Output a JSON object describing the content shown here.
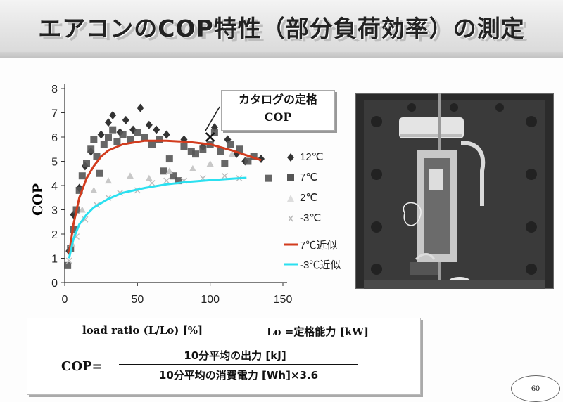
{
  "slide": {
    "title": "エアコンのCOP特性（部分負荷効率）の測定",
    "page_number": "60"
  },
  "callout": {
    "line1": "カタログの定格",
    "line2": "COP"
  },
  "legend": {
    "items": [
      {
        "label": "12℃",
        "symbol": "diamond",
        "color": "#333333"
      },
      {
        "label": "7℃",
        "symbol": "square",
        "color": "#555555"
      },
      {
        "label": "2℃",
        "symbol": "triangle",
        "color": "#c8c8c8"
      },
      {
        "label": "-3℃",
        "symbol": "cross",
        "color": "#bbbbbb"
      },
      {
        "label": "7℃近似",
        "symbol": "line",
        "color": "#d23c1e"
      },
      {
        "label": "-3℃近似",
        "symbol": "line",
        "color": "#2be0f0"
      }
    ]
  },
  "formula": {
    "load_ratio": "load ratio (L/Lo) [%]",
    "lo_def": "Lo =定格能力 [kW]",
    "lhs": "COP=",
    "numerator": "10分平均の出力 [kJ]",
    "denominator": "10分平均の消費電力 [Wh]×3.6"
  },
  "photo": {
    "icon": "air-conditioner-test-room-photo"
  },
  "chart_data": {
    "type": "scatter",
    "title": "",
    "xlabel": "",
    "ylabel": "COP",
    "xlim": [
      0,
      150
    ],
    "ylim": [
      0,
      8
    ],
    "x_ticks": [
      "0",
      "50",
      "100",
      "150"
    ],
    "y_ticks": [
      "0",
      "1",
      "2",
      "3",
      "4",
      "5",
      "6",
      "7",
      "8"
    ],
    "grid": false,
    "legend_position": "right",
    "catalog_rated_cop": {
      "x": 100,
      "y": 6.0
    },
    "series": [
      {
        "name": "12℃",
        "kind": "scatter",
        "marker": "diamond",
        "color": "#333333",
        "points": [
          [
            3,
            1.3
          ],
          [
            6,
            2.8
          ],
          [
            10,
            3.9
          ],
          [
            14,
            4.8
          ],
          [
            18,
            5.4
          ],
          [
            25,
            6.1
          ],
          [
            30,
            6.6
          ],
          [
            33,
            6.9
          ],
          [
            38,
            6.2
          ],
          [
            42,
            6.7
          ],
          [
            47,
            6.3
          ],
          [
            52,
            7.2
          ],
          [
            58,
            6.5
          ],
          [
            63,
            6.3
          ],
          [
            70,
            6.1
          ],
          [
            82,
            5.9
          ],
          [
            95,
            5.6
          ],
          [
            103,
            6.4
          ],
          [
            112,
            5.9
          ],
          [
            118,
            5.3
          ],
          [
            124,
            5.0
          ],
          [
            135,
            5.1
          ]
        ]
      },
      {
        "name": "7℃",
        "kind": "scatter",
        "marker": "square",
        "color": "#555555",
        "points": [
          [
            2,
            0.7
          ],
          [
            4,
            1.4
          ],
          [
            6,
            2.2
          ],
          [
            8,
            3.0
          ],
          [
            10,
            3.8
          ],
          [
            12,
            4.4
          ],
          [
            15,
            4.9
          ],
          [
            18,
            5.5
          ],
          [
            20,
            5.9
          ],
          [
            22,
            5.2
          ],
          [
            24,
            4.5
          ],
          [
            27,
            5.7
          ],
          [
            30,
            6.0
          ],
          [
            33,
            6.3
          ],
          [
            36,
            5.8
          ],
          [
            40,
            6.1
          ],
          [
            45,
            5.9
          ],
          [
            50,
            6.2
          ],
          [
            55,
            6.0
          ],
          [
            60,
            5.7
          ],
          [
            65,
            5.9
          ],
          [
            68,
            4.6
          ],
          [
            72,
            5.1
          ],
          [
            75,
            4.4
          ],
          [
            78,
            4.2
          ],
          [
            82,
            5.6
          ],
          [
            87,
            5.4
          ],
          [
            90,
            5.3
          ],
          [
            95,
            5.5
          ],
          [
            100,
            5.7
          ],
          [
            103,
            6.2
          ],
          [
            107,
            5.4
          ],
          [
            110,
            4.9
          ],
          [
            114,
            5.7
          ],
          [
            120,
            5.5
          ],
          [
            126,
            5.0
          ],
          [
            130,
            5.2
          ],
          [
            140,
            4.3
          ]
        ]
      },
      {
        "name": "2℃",
        "kind": "scatter",
        "marker": "triangle",
        "color": "#c8c8c8",
        "points": [
          [
            5,
            1.6
          ],
          [
            12,
            3.0
          ],
          [
            20,
            3.8
          ],
          [
            30,
            4.2
          ],
          [
            45,
            4.4
          ],
          [
            58,
            4.3
          ],
          [
            72,
            4.6
          ],
          [
            88,
            4.7
          ],
          [
            100,
            4.9
          ],
          [
            115,
            5.3
          ]
        ]
      },
      {
        "name": "-3℃",
        "kind": "scatter",
        "marker": "cross",
        "color": "#bbbbbb",
        "points": [
          [
            3,
            0.9
          ],
          [
            8,
            1.9
          ],
          [
            14,
            2.6
          ],
          [
            22,
            3.2
          ],
          [
            30,
            3.5
          ],
          [
            38,
            3.7
          ],
          [
            50,
            3.8
          ],
          [
            60,
            4.1
          ],
          [
            70,
            4.2
          ],
          [
            82,
            4.2
          ],
          [
            95,
            4.3
          ],
          [
            110,
            4.4
          ],
          [
            120,
            4.3
          ]
        ]
      },
      {
        "name": "7℃近似",
        "kind": "line",
        "color": "#d23c1e",
        "points": [
          [
            3,
            1.2
          ],
          [
            6,
            2.4
          ],
          [
            10,
            3.5
          ],
          [
            15,
            4.3
          ],
          [
            20,
            4.8
          ],
          [
            25,
            5.2
          ],
          [
            30,
            5.45
          ],
          [
            40,
            5.7
          ],
          [
            55,
            5.85
          ],
          [
            70,
            5.85
          ],
          [
            85,
            5.8
          ],
          [
            100,
            5.7
          ],
          [
            115,
            5.45
          ],
          [
            125,
            5.25
          ],
          [
            135,
            5.05
          ]
        ]
      },
      {
        "name": "-3℃近似",
        "kind": "line",
        "color": "#2be0f0",
        "points": [
          [
            3,
            1.0
          ],
          [
            6,
            1.8
          ],
          [
            10,
            2.4
          ],
          [
            15,
            2.8
          ],
          [
            20,
            3.1
          ],
          [
            30,
            3.45
          ],
          [
            40,
            3.7
          ],
          [
            55,
            3.9
          ],
          [
            70,
            4.05
          ],
          [
            85,
            4.15
          ],
          [
            100,
            4.22
          ],
          [
            115,
            4.28
          ],
          [
            125,
            4.32
          ]
        ]
      }
    ]
  }
}
